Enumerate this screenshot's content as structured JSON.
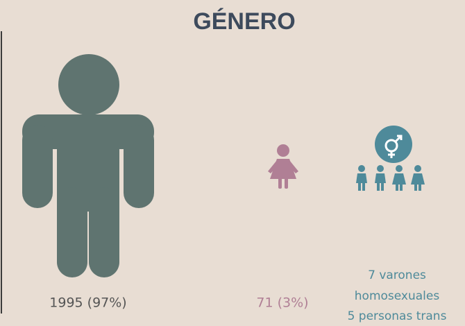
{
  "title": "GÉNERO",
  "groups": [
    {
      "label": "1995 (97%)"
    },
    {
      "label": "71 (3%)"
    },
    {
      "lines": [
        "7 varones",
        "homosexuales",
        "5 personas trans"
      ]
    }
  ]
}
